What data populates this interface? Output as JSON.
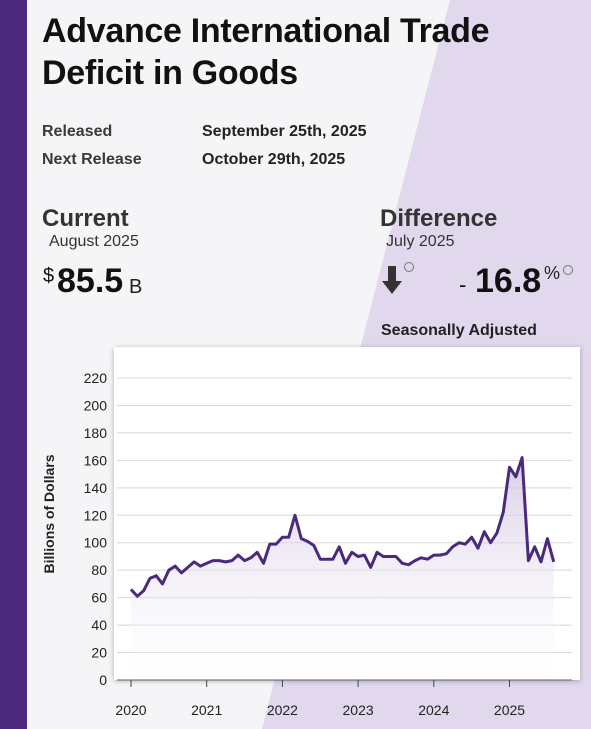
{
  "title": "Advance International Trade Deficit in Goods",
  "meta": {
    "released_label": "Released",
    "released_value": "September 25th, 2025",
    "next_label": "Next Release",
    "next_value": "October 29th, 2025"
  },
  "current": {
    "heading": "Current",
    "period": "August 2025",
    "currency": "$",
    "value": "85.5",
    "unit": "B"
  },
  "difference": {
    "heading": "Difference",
    "period": "July 2025",
    "direction_icon": "arrow-down-icon",
    "sign": "-",
    "value": "16.8",
    "unit": "%"
  },
  "adjustment_note": "Seasonally Adjusted",
  "colors": {
    "accent": "#4b2a7e",
    "line": "#4b2a7e",
    "background_tint": "#e1d8ee",
    "text": "#111111"
  },
  "chart_data": {
    "type": "area",
    "title": "",
    "xlabel": "",
    "ylabel": "Billions of Dollars",
    "ylim": [
      0,
      220
    ],
    "yticks": [
      0,
      20,
      40,
      60,
      80,
      100,
      120,
      140,
      160,
      180,
      200,
      220
    ],
    "xticks": [
      "2020",
      "2021",
      "2022",
      "2023",
      "2024",
      "2025"
    ],
    "xlim": [
      "2020-01",
      "2025-09"
    ],
    "grid": true,
    "legend": "none",
    "series": [
      {
        "dates": [
          "2020-01",
          "2020-02",
          "2020-03",
          "2020-04",
          "2020-05",
          "2020-06",
          "2020-07",
          "2020-08",
          "2020-09",
          "2020-10",
          "2020-11",
          "2020-12",
          "2021-01",
          "2021-02",
          "2021-03",
          "2021-04",
          "2021-05",
          "2021-06",
          "2021-07",
          "2021-08",
          "2021-09",
          "2021-10",
          "2021-11",
          "2021-12",
          "2022-01",
          "2022-02",
          "2022-03",
          "2022-04",
          "2022-05",
          "2022-06",
          "2022-07",
          "2022-08",
          "2022-09",
          "2022-10",
          "2022-11",
          "2022-12",
          "2023-01",
          "2023-02",
          "2023-03",
          "2023-04",
          "2023-05",
          "2023-06",
          "2023-07",
          "2023-08",
          "2023-09",
          "2023-10",
          "2023-11",
          "2023-12",
          "2024-01",
          "2024-02",
          "2024-03",
          "2024-04",
          "2024-05",
          "2024-06",
          "2024-07",
          "2024-08",
          "2024-09",
          "2024-10",
          "2024-11",
          "2024-12",
          "2025-01",
          "2025-02",
          "2025-03",
          "2025-04",
          "2025-05",
          "2025-06",
          "2025-07",
          "2025-08"
        ],
        "values": [
          66,
          61,
          65,
          74,
          76,
          70,
          80,
          83,
          78,
          82,
          86,
          83,
          85,
          87,
          87,
          86,
          87,
          91,
          87,
          89,
          93,
          85,
          99,
          99,
          104,
          104,
          120,
          103,
          101,
          98,
          88,
          88,
          88,
          97,
          85,
          93,
          90,
          91,
          82,
          93,
          90,
          90,
          90,
          85,
          84,
          87,
          89,
          88,
          91,
          91,
          92,
          97,
          100,
          99,
          104,
          96,
          108,
          100,
          107,
          122,
          155,
          148,
          162,
          87,
          97,
          86,
          103,
          86
        ]
      }
    ]
  }
}
